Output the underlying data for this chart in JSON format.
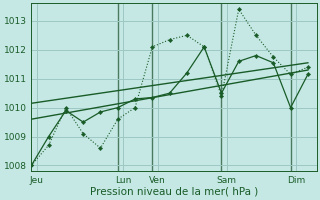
{
  "background_color": "#c5e8e5",
  "grid_color": "#9dc8c2",
  "line_color": "#1a5c28",
  "vline_color": "#4a7a60",
  "xlabel": "Pression niveau de la mer( hPa )",
  "ylim": [
    1007.8,
    1013.6
  ],
  "yticks": [
    1008,
    1009,
    1010,
    1011,
    1012,
    1013
  ],
  "xlim": [
    0,
    16.5
  ],
  "xtick_positions": [
    0.3,
    5.3,
    7.3,
    11.3,
    15.3
  ],
  "xtick_labels": [
    "Jeu",
    "Lun",
    "Ven",
    "Sam",
    "Dim"
  ],
  "vlines_x": [
    5.0,
    7.0,
    11.0,
    15.0
  ],
  "dotted1_x": [
    0,
    1,
    2,
    3,
    4,
    5,
    6,
    7,
    8,
    9,
    10,
    11,
    12,
    13,
    14,
    15,
    16
  ],
  "dotted1_y": [
    1008.0,
    1008.7,
    1010.0,
    1009.1,
    1008.6,
    1009.6,
    1010.0,
    1012.1,
    1012.35,
    1012.5,
    1012.1,
    1010.4,
    1013.4,
    1012.5,
    1011.75,
    1011.15,
    1011.4
  ],
  "dotted2_x": [
    0,
    1,
    2,
    3,
    4,
    5,
    6,
    7,
    8,
    9,
    10,
    11,
    12,
    13,
    14,
    15,
    16
  ],
  "dotted2_y": [
    1008.0,
    1009.0,
    1009.9,
    1009.5,
    1009.85,
    1010.0,
    1010.3,
    1010.35,
    1010.5,
    1011.2,
    1012.1,
    1010.5,
    1011.6,
    1011.8,
    1011.55,
    1010.0,
    1011.15
  ],
  "trend1_x": [
    0,
    16
  ],
  "trend1_y": [
    1009.6,
    1011.3
  ],
  "trend2_x": [
    0,
    16
  ],
  "trend2_y": [
    1010.15,
    1011.55
  ]
}
